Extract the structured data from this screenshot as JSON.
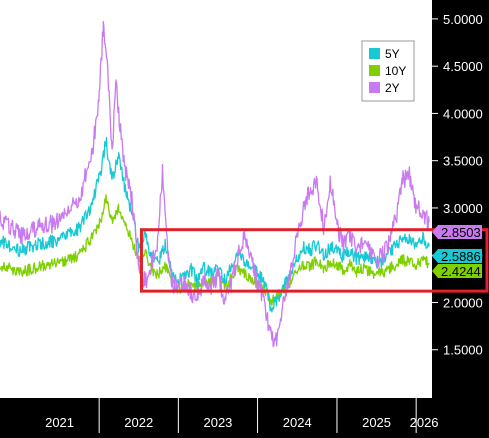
{
  "chart_data": {
    "type": "line",
    "title": "",
    "xlabel": "",
    "ylabel": "",
    "x_range": [
      "2020-10-01",
      "2026-03-15"
    ],
    "ylim": [
      1.0,
      5.2
    ],
    "y_ticks": [
      "5.0000",
      "4.5000",
      "4.0000",
      "3.5000",
      "3.0000",
      "2.5000",
      "2.0000",
      "1.5000"
    ],
    "x_tick_labels": [
      "2021",
      "2022",
      "2023",
      "2024",
      "2025",
      "2026"
    ],
    "grid": false,
    "legend_position": "top-right",
    "series": [
      {
        "name": "5Y",
        "color": "#17c9d3",
        "last_value_label": "2.5886",
        "points": [
          [
            "2020-10-01",
            2.65
          ],
          [
            "2021-01-01",
            2.55
          ],
          [
            "2021-04-01",
            2.62
          ],
          [
            "2021-07-01",
            2.66
          ],
          [
            "2021-10-01",
            2.78
          ],
          [
            "2021-12-01",
            3.05
          ],
          [
            "2022-01-15",
            3.45
          ],
          [
            "2022-02-01",
            3.72
          ],
          [
            "2022-03-01",
            3.3
          ],
          [
            "2022-04-01",
            3.55
          ],
          [
            "2022-05-01",
            3.2
          ],
          [
            "2022-06-01",
            2.95
          ],
          [
            "2022-07-01",
            2.6
          ],
          [
            "2022-08-01",
            2.7
          ],
          [
            "2022-09-01",
            2.48
          ],
          [
            "2022-10-01",
            2.42
          ],
          [
            "2022-11-01",
            2.62
          ],
          [
            "2022-12-01",
            2.32
          ],
          [
            "2023-01-01",
            2.25
          ],
          [
            "2023-02-01",
            2.28
          ],
          [
            "2023-03-01",
            2.35
          ],
          [
            "2023-04-01",
            2.22
          ],
          [
            "2023-05-01",
            2.38
          ],
          [
            "2023-06-01",
            2.3
          ],
          [
            "2023-07-01",
            2.42
          ],
          [
            "2023-08-01",
            2.25
          ],
          [
            "2023-09-01",
            2.36
          ],
          [
            "2023-10-01",
            2.55
          ],
          [
            "2023-11-01",
            2.45
          ],
          [
            "2023-12-01",
            2.38
          ],
          [
            "2024-01-01",
            2.3
          ],
          [
            "2024-02-01",
            2.22
          ],
          [
            "2024-03-01",
            1.95
          ],
          [
            "2024-04-01",
            2.02
          ],
          [
            "2024-05-01",
            2.18
          ],
          [
            "2024-06-01",
            2.3
          ],
          [
            "2024-07-01",
            2.45
          ],
          [
            "2024-08-01",
            2.58
          ],
          [
            "2024-09-01",
            2.55
          ],
          [
            "2024-10-01",
            2.62
          ],
          [
            "2024-11-01",
            2.5
          ],
          [
            "2024-12-01",
            2.58
          ],
          [
            "2025-01-01",
            2.55
          ],
          [
            "2025-02-01",
            2.48
          ],
          [
            "2025-03-01",
            2.56
          ],
          [
            "2025-04-01",
            2.45
          ],
          [
            "2025-05-01",
            2.5
          ],
          [
            "2025-06-01",
            2.47
          ],
          [
            "2025-07-01",
            2.42
          ],
          [
            "2025-08-01",
            2.45
          ],
          [
            "2025-09-01",
            2.52
          ],
          [
            "2025-10-01",
            2.6
          ],
          [
            "2025-11-01",
            2.72
          ],
          [
            "2025-12-01",
            2.66
          ],
          [
            "2026-01-01",
            2.62
          ],
          [
            "2026-02-01",
            2.7
          ],
          [
            "2026-03-01",
            2.59
          ]
        ]
      },
      {
        "name": "10Y",
        "color": "#7fd000",
        "last_value_label": "2.4244",
        "points": [
          [
            "2020-10-01",
            2.4
          ],
          [
            "2021-01-01",
            2.32
          ],
          [
            "2021-04-01",
            2.38
          ],
          [
            "2021-07-01",
            2.42
          ],
          [
            "2021-10-01",
            2.5
          ],
          [
            "2021-12-01",
            2.7
          ],
          [
            "2022-01-15",
            2.9
          ],
          [
            "2022-02-01",
            3.1
          ],
          [
            "2022-03-01",
            2.85
          ],
          [
            "2022-04-01",
            3.0
          ],
          [
            "2022-05-01",
            2.8
          ],
          [
            "2022-06-01",
            2.65
          ],
          [
            "2022-07-01",
            2.45
          ],
          [
            "2022-08-01",
            2.52
          ],
          [
            "2022-09-01",
            2.35
          ],
          [
            "2022-10-01",
            2.3
          ],
          [
            "2022-11-01",
            2.4
          ],
          [
            "2022-12-01",
            2.2
          ],
          [
            "2023-01-01",
            2.15
          ],
          [
            "2023-02-01",
            2.18
          ],
          [
            "2023-03-01",
            2.22
          ],
          [
            "2023-04-01",
            2.15
          ],
          [
            "2023-05-01",
            2.25
          ],
          [
            "2023-06-01",
            2.2
          ],
          [
            "2023-07-01",
            2.3
          ],
          [
            "2023-08-01",
            2.18
          ],
          [
            "2023-09-01",
            2.25
          ],
          [
            "2023-10-01",
            2.38
          ],
          [
            "2023-11-01",
            2.3
          ],
          [
            "2023-12-01",
            2.25
          ],
          [
            "2024-01-01",
            2.2
          ],
          [
            "2024-02-01",
            2.15
          ],
          [
            "2024-03-01",
            2.02
          ],
          [
            "2024-04-01",
            2.05
          ],
          [
            "2024-05-01",
            2.15
          ],
          [
            "2024-06-01",
            2.22
          ],
          [
            "2024-07-01",
            2.32
          ],
          [
            "2024-08-01",
            2.4
          ],
          [
            "2024-09-01",
            2.38
          ],
          [
            "2024-10-01",
            2.45
          ],
          [
            "2024-11-01",
            2.35
          ],
          [
            "2024-12-01",
            2.42
          ],
          [
            "2025-01-01",
            2.4
          ],
          [
            "2025-02-01",
            2.35
          ],
          [
            "2025-03-01",
            2.4
          ],
          [
            "2025-04-01",
            2.32
          ],
          [
            "2025-05-01",
            2.36
          ],
          [
            "2025-06-01",
            2.33
          ],
          [
            "2025-07-01",
            2.3
          ],
          [
            "2025-08-01",
            2.32
          ],
          [
            "2025-09-01",
            2.36
          ],
          [
            "2025-10-01",
            2.4
          ],
          [
            "2025-11-01",
            2.45
          ],
          [
            "2025-12-01",
            2.42
          ],
          [
            "2026-01-01",
            2.4
          ],
          [
            "2026-02-01",
            2.44
          ],
          [
            "2026-03-01",
            2.42
          ]
        ]
      },
      {
        "name": "2Y",
        "color": "#c97af0",
        "last_value_label": "2.8503",
        "points": [
          [
            "2020-10-01",
            2.9
          ],
          [
            "2021-01-01",
            2.7
          ],
          [
            "2021-04-01",
            2.8
          ],
          [
            "2021-07-01",
            2.85
          ],
          [
            "2021-10-01",
            3.1
          ],
          [
            "2021-12-01",
            3.6
          ],
          [
            "2022-01-01",
            4.2
          ],
          [
            "2022-01-20",
            4.92
          ],
          [
            "2022-02-10",
            4.4
          ],
          [
            "2022-03-01",
            3.6
          ],
          [
            "2022-03-20",
            4.3
          ],
          [
            "2022-04-10",
            3.8
          ],
          [
            "2022-05-01",
            3.4
          ],
          [
            "2022-06-01",
            3.1
          ],
          [
            "2022-07-01",
            2.4
          ],
          [
            "2022-08-01",
            2.2
          ],
          [
            "2022-09-01",
            2.4
          ],
          [
            "2022-10-01",
            2.7
          ],
          [
            "2022-10-20",
            3.4
          ],
          [
            "2022-11-10",
            2.7
          ],
          [
            "2022-12-01",
            2.2
          ],
          [
            "2023-01-01",
            2.15
          ],
          [
            "2023-02-01",
            2.2
          ],
          [
            "2023-03-01",
            2.1
          ],
          [
            "2023-04-01",
            2.05
          ],
          [
            "2023-05-01",
            2.25
          ],
          [
            "2023-06-01",
            2.15
          ],
          [
            "2023-07-01",
            2.3
          ],
          [
            "2023-08-01",
            2.05
          ],
          [
            "2023-09-01",
            2.2
          ],
          [
            "2023-10-01",
            2.5
          ],
          [
            "2023-11-01",
            2.7
          ],
          [
            "2023-12-01",
            2.5
          ],
          [
            "2024-01-01",
            2.2
          ],
          [
            "2024-02-01",
            2.0
          ],
          [
            "2024-03-01",
            1.65
          ],
          [
            "2024-03-20",
            1.55
          ],
          [
            "2024-04-10",
            1.75
          ],
          [
            "2024-05-01",
            2.0
          ],
          [
            "2024-06-01",
            2.3
          ],
          [
            "2024-07-01",
            2.7
          ],
          [
            "2024-08-01",
            3.0
          ],
          [
            "2024-09-01",
            3.2
          ],
          [
            "2024-10-01",
            3.25
          ],
          [
            "2024-11-01",
            2.8
          ],
          [
            "2024-12-01",
            3.3
          ],
          [
            "2025-01-01",
            2.8
          ],
          [
            "2025-02-01",
            2.6
          ],
          [
            "2025-03-01",
            2.7
          ],
          [
            "2025-04-01",
            2.55
          ],
          [
            "2025-05-01",
            2.6
          ],
          [
            "2025-06-01",
            2.55
          ],
          [
            "2025-07-01",
            2.45
          ],
          [
            "2025-08-01",
            2.5
          ],
          [
            "2025-09-01",
            2.65
          ],
          [
            "2025-10-01",
            2.9
          ],
          [
            "2025-11-01",
            3.3
          ],
          [
            "2025-12-01",
            3.35
          ],
          [
            "2026-01-01",
            3.0
          ],
          [
            "2026-02-01",
            2.95
          ],
          [
            "2026-03-01",
            2.85
          ]
        ]
      }
    ],
    "highlight_box": {
      "color": "#e0202a",
      "x_from": "2022-07-15",
      "x_to": "2026-03-15",
      "y_from": 2.12,
      "y_to": 2.77
    }
  }
}
